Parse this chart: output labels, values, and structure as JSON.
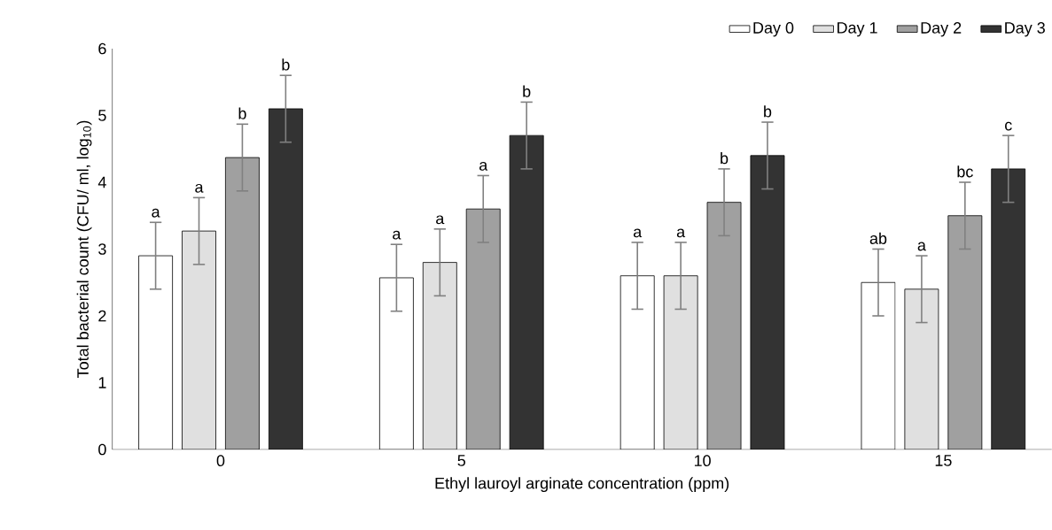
{
  "chart_data": {
    "type": "bar",
    "xlabel": "Ethyl lauroyl arginate concentration (ppm)",
    "ylabel": "Total bacterial count  (CFU/ ml, log$_{10}$)",
    "categories": [
      "0",
      "5",
      "10",
      "15"
    ],
    "series": [
      {
        "name": "Day 0",
        "color": "#ffffff",
        "values": [
          2.9,
          2.57,
          2.6,
          2.5
        ],
        "errors": [
          0.5,
          0.5,
          0.5,
          0.5
        ],
        "value_labels": [
          "a",
          "a",
          "a",
          "ab"
        ]
      },
      {
        "name": "Day 1",
        "color": "#e0e0e0",
        "values": [
          3.27,
          2.8,
          2.6,
          2.4
        ],
        "errors": [
          0.5,
          0.5,
          0.5,
          0.5
        ],
        "value_labels": [
          "a",
          "a",
          "a",
          "a"
        ]
      },
      {
        "name": "Day 2",
        "color": "#a0a0a0",
        "values": [
          4.37,
          3.6,
          3.7,
          3.5
        ],
        "errors": [
          0.5,
          0.5,
          0.5,
          0.5
        ],
        "value_labels": [
          "b",
          "a",
          "b",
          "bc"
        ]
      },
      {
        "name": "Day 3",
        "color": "#333333",
        "values": [
          5.1,
          4.7,
          4.4,
          4.2
        ],
        "errors": [
          0.5,
          0.5,
          0.5,
          0.5
        ],
        "value_labels": [
          "b",
          "b",
          "b",
          "c"
        ]
      }
    ],
    "ylim": [
      0,
      6
    ],
    "yticks": [
      0,
      1,
      2,
      3,
      4,
      5,
      6
    ],
    "grid": false,
    "legend": "top right"
  }
}
